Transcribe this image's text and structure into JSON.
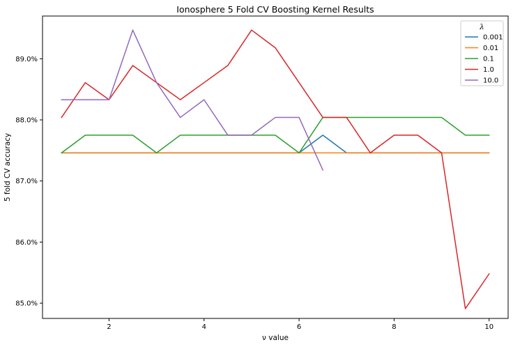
{
  "chart_data": {
    "type": "line",
    "title": "Ionosphere 5 Fold CV Boosting Kernel Results",
    "xlabel": "ν value",
    "ylabel": "5 fold CV accuracy",
    "xlim": [
      0.6,
      10.4
    ],
    "ylim": [
      84.75,
      89.7
    ],
    "xticks": [
      2,
      4,
      6,
      8,
      10
    ],
    "yticks": [
      85.0,
      86.0,
      87.0,
      88.0,
      89.0
    ],
    "ytick_labels": [
      "85.0%",
      "86.0%",
      "87.0%",
      "88.0%",
      "89.0%"
    ],
    "grid": false,
    "legend": {
      "title": "λ",
      "position": "top-right"
    },
    "x": [
      1.0,
      1.5,
      2.0,
      2.5,
      3.0,
      3.5,
      4.0,
      4.5,
      5.0,
      5.5,
      6.0,
      6.5,
      7.0,
      7.5,
      8.0,
      8.5,
      9.0,
      9.5,
      10.0
    ],
    "series": [
      {
        "name": "0.001",
        "color": "#1f77b4",
        "values": [
          87.46,
          87.46,
          87.46,
          87.46,
          87.46,
          87.46,
          87.46,
          87.46,
          87.46,
          87.46,
          87.46,
          87.75,
          87.46,
          87.46,
          87.46,
          87.46,
          87.46,
          87.46,
          87.46
        ]
      },
      {
        "name": "0.01",
        "color": "#ff7f0e",
        "values": [
          87.46,
          87.46,
          87.46,
          87.46,
          87.46,
          87.46,
          87.46,
          87.46,
          87.46,
          87.46,
          87.46,
          87.46,
          87.46,
          87.46,
          87.46,
          87.46,
          87.46,
          87.46,
          87.46
        ]
      },
      {
        "name": "0.1",
        "color": "#2ca02c",
        "values": [
          87.46,
          87.75,
          87.75,
          87.75,
          87.46,
          87.75,
          87.75,
          87.75,
          87.75,
          87.75,
          87.46,
          88.04,
          88.04,
          88.04,
          88.04,
          88.04,
          88.04,
          87.75,
          87.75
        ]
      },
      {
        "name": "1.0",
        "color": "#d62728",
        "values": [
          88.04,
          88.61,
          88.33,
          88.89,
          88.61,
          88.33,
          88.61,
          88.89,
          89.47,
          89.18,
          88.61,
          88.04,
          88.04,
          87.46,
          87.75,
          87.75,
          87.46,
          84.91,
          85.48
        ]
      },
      {
        "name": "10.0",
        "color": "#9467bd",
        "values": [
          88.33,
          88.33,
          88.33,
          89.47,
          88.61,
          88.04,
          88.33,
          87.75,
          87.75,
          88.04,
          88.04,
          87.18,
          null,
          null,
          null,
          null,
          null,
          null,
          null
        ]
      }
    ]
  }
}
